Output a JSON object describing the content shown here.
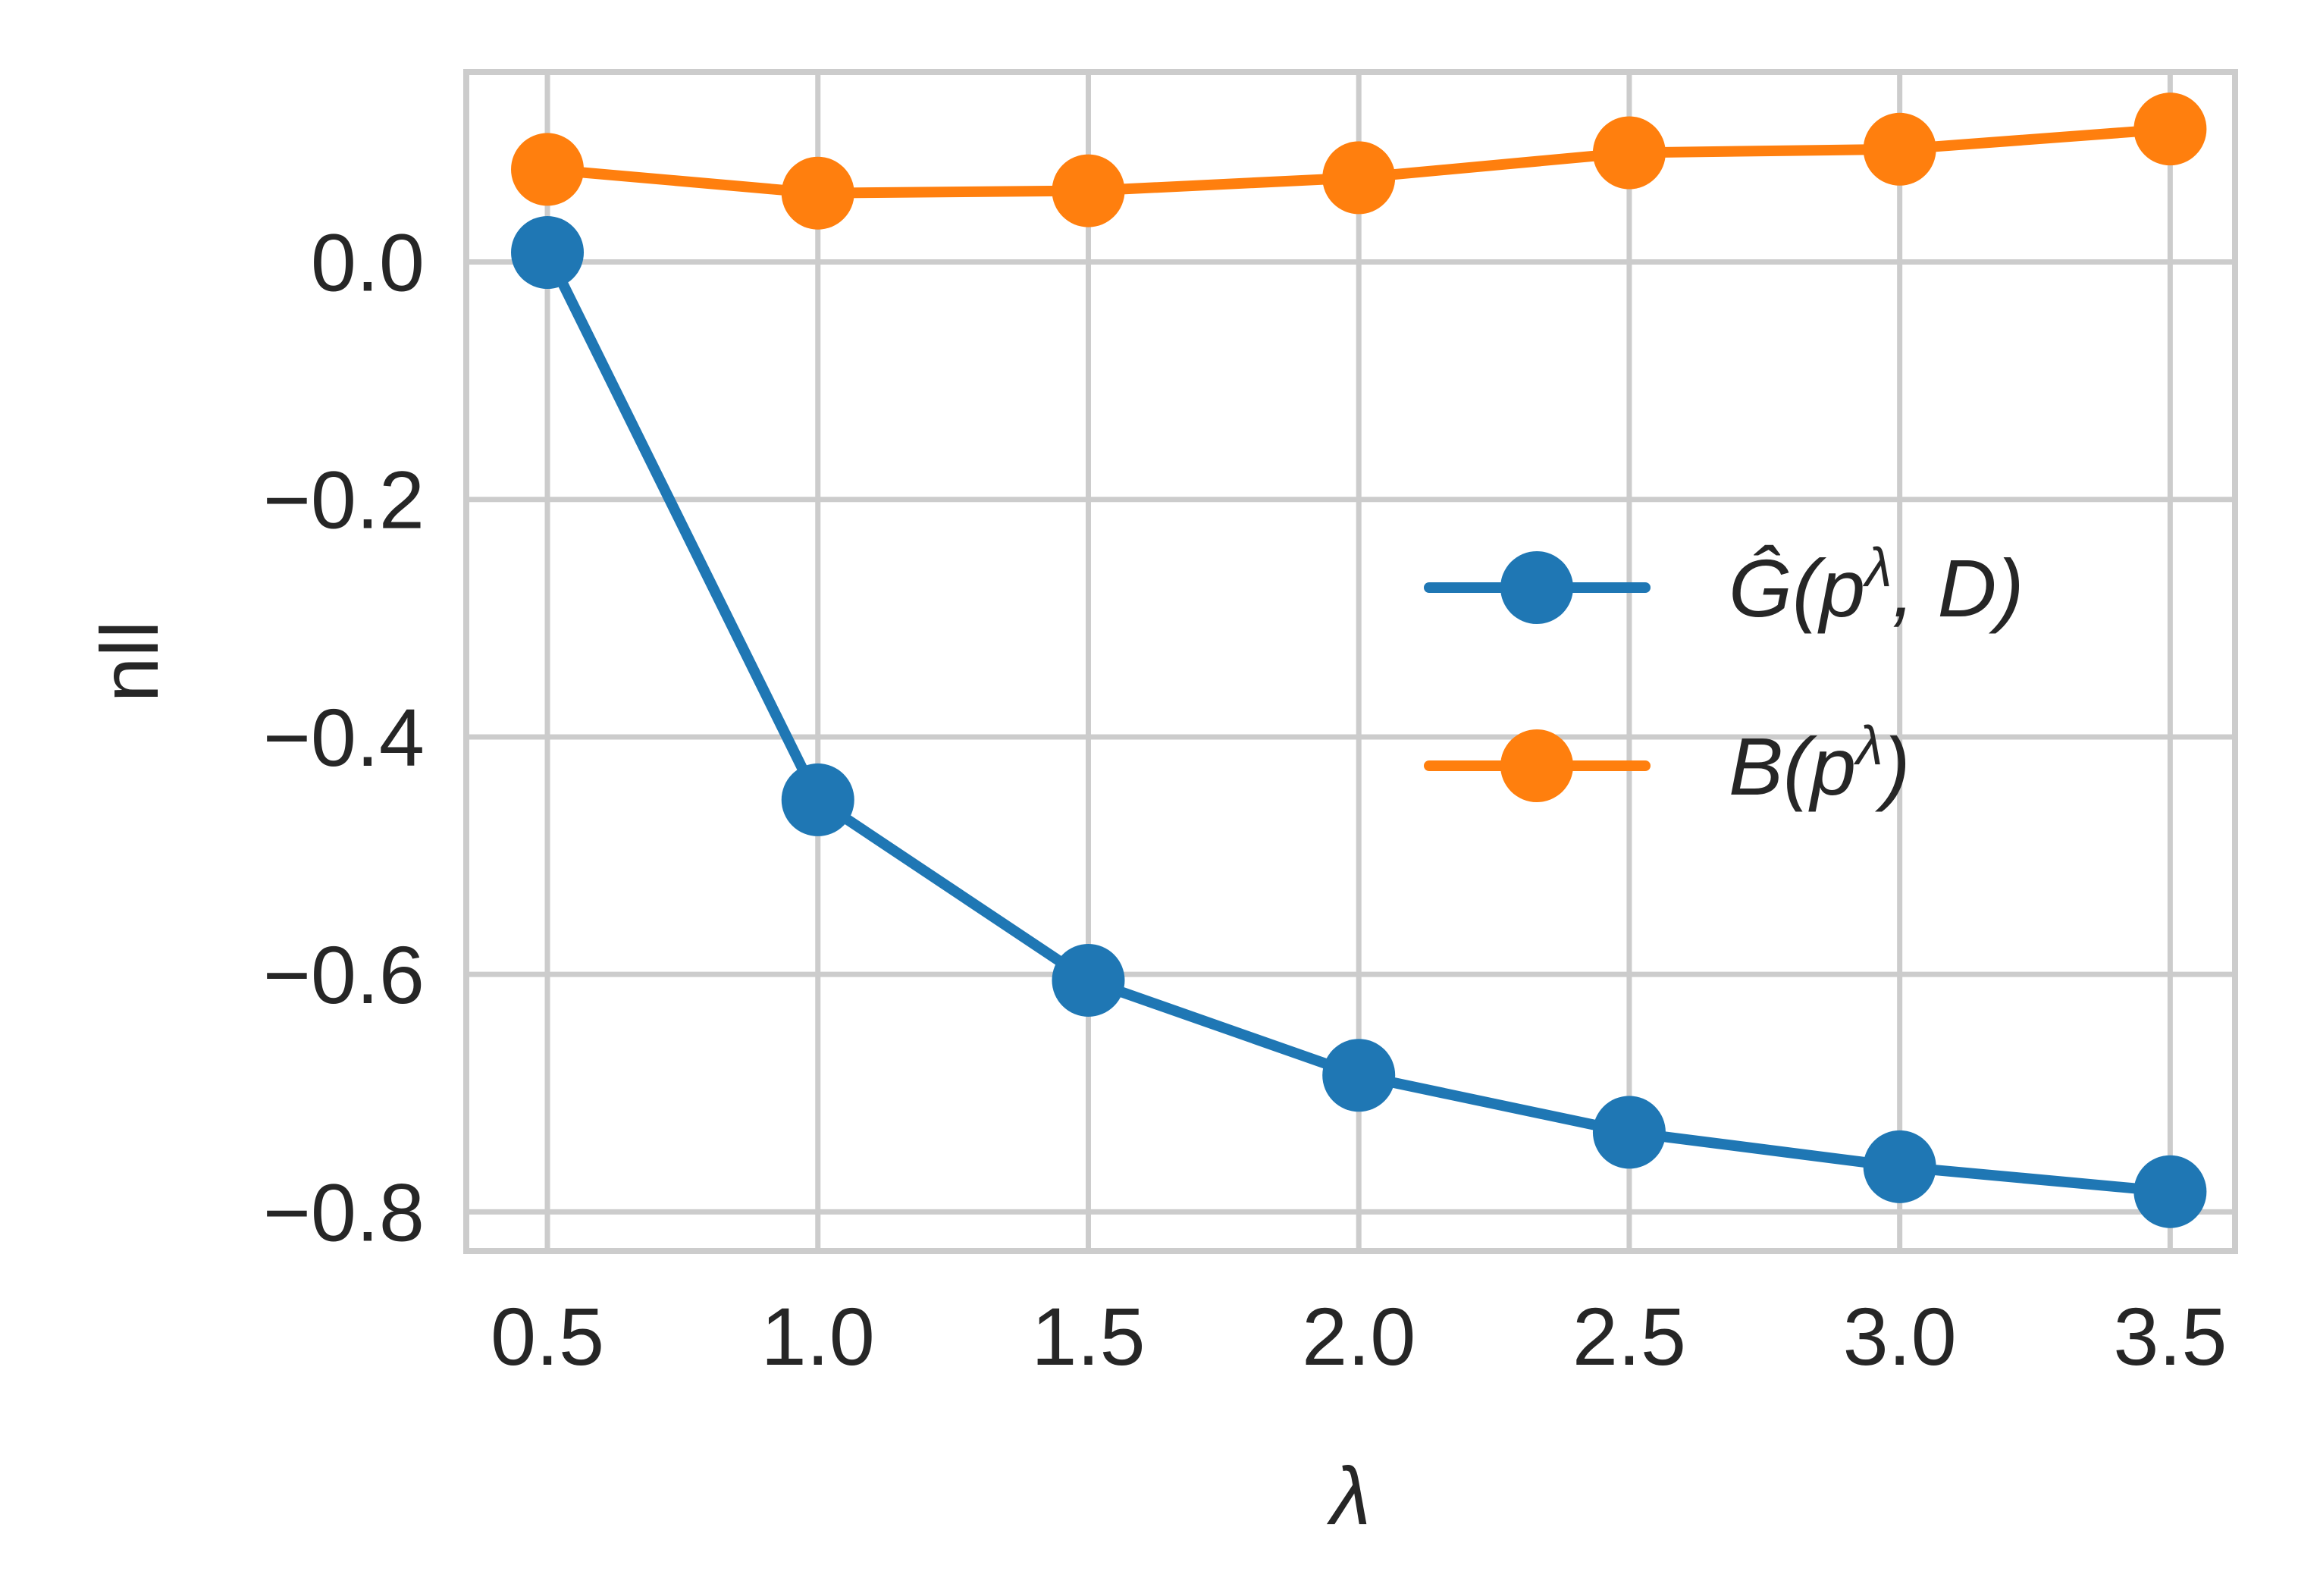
{
  "chart_data": {
    "type": "line",
    "xlabel": "λ",
    "ylabel": "nll",
    "x": [
      0.5,
      1.0,
      1.5,
      2.0,
      2.5,
      3.0,
      3.5
    ],
    "xticks": [
      "0.5",
      "1.0",
      "1.5",
      "2.0",
      "2.5",
      "3.0",
      "3.5"
    ],
    "yticks": [
      "0.0",
      "−0.2",
      "−0.4",
      "−0.6",
      "−0.8"
    ],
    "ytick_values": [
      0.0,
      -0.2,
      -0.4,
      -0.6,
      -0.8
    ],
    "xlim": [
      0.35,
      3.62
    ],
    "ylim": [
      -0.833,
      0.16
    ],
    "grid": true,
    "legend_position": "right",
    "series": [
      {
        "legend_base": "Ĝ(p",
        "legend_sup": "λ",
        "legend_tail": ", D)",
        "color": "#1f77b4",
        "values": [
          0.008,
          -0.453,
          -0.605,
          -0.685,
          -0.733,
          -0.762,
          -0.783
        ]
      },
      {
        "legend_base": "B(p",
        "legend_sup": "λ",
        "legend_tail": ")",
        "color": "#ff7f0e",
        "values": [
          0.078,
          0.058,
          0.06,
          0.071,
          0.092,
          0.095,
          0.112
        ]
      }
    ]
  }
}
